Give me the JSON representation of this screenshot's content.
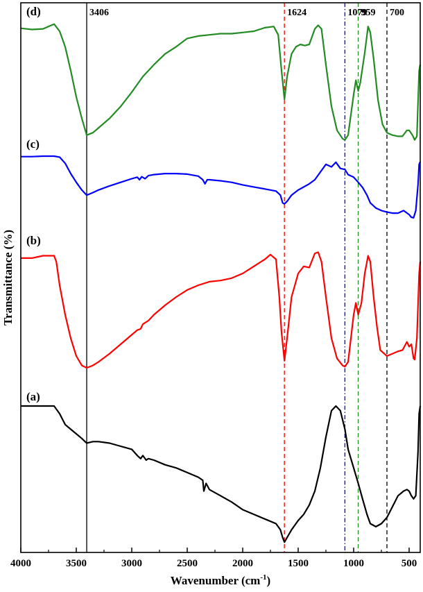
{
  "chart_data": {
    "type": "line",
    "xlabel": "Wavenumber (cm",
    "xlabel_sup": "-1",
    "xlabel_end": ")",
    "ylabel": "Transmittance (%)",
    "xlim": [
      4000,
      400
    ],
    "x_reversed": true,
    "x_ticks": [
      4000,
      3500,
      3000,
      2500,
      2000,
      1500,
      1000,
      500
    ],
    "y_ticks_shown": false,
    "grid": false,
    "stacked_offset": true,
    "series": [
      {
        "name": "(d)",
        "color": "#228b22",
        "points": [
          [
            4000,
            0.955
          ],
          [
            3900,
            0.945
          ],
          [
            3800,
            0.95
          ],
          [
            3700,
            0.99
          ],
          [
            3650,
            0.93
          ],
          [
            3600,
            0.8
          ],
          [
            3550,
            0.6
          ],
          [
            3500,
            0.38
          ],
          [
            3450,
            0.2
          ],
          [
            3406,
            0.06
          ],
          [
            3350,
            0.08
          ],
          [
            3300,
            0.12
          ],
          [
            3200,
            0.2
          ],
          [
            3100,
            0.3
          ],
          [
            3000,
            0.42
          ],
          [
            2900,
            0.55
          ],
          [
            2800,
            0.65
          ],
          [
            2700,
            0.74
          ],
          [
            2600,
            0.8
          ],
          [
            2500,
            0.87
          ],
          [
            2400,
            0.89
          ],
          [
            2300,
            0.9
          ],
          [
            2200,
            0.91
          ],
          [
            2100,
            0.91
          ],
          [
            2000,
            0.92
          ],
          [
            1900,
            0.93
          ],
          [
            1800,
            0.96
          ],
          [
            1720,
            0.97
          ],
          [
            1680,
            0.9
          ],
          [
            1650,
            0.6
          ],
          [
            1624,
            0.36
          ],
          [
            1600,
            0.55
          ],
          [
            1560,
            0.74
          ],
          [
            1520,
            0.8
          ],
          [
            1480,
            0.82
          ],
          [
            1440,
            0.81
          ],
          [
            1400,
            0.82
          ],
          [
            1350,
            0.95
          ],
          [
            1320,
            0.98
          ],
          [
            1290,
            0.95
          ],
          [
            1250,
            0.65
          ],
          [
            1200,
            0.3
          ],
          [
            1150,
            0.1
          ],
          [
            1100,
            0.03
          ],
          [
            1079,
            0.02
          ],
          [
            1050,
            0.06
          ],
          [
            1000,
            0.4
          ],
          [
            980,
            0.52
          ],
          [
            959,
            0.43
          ],
          [
            940,
            0.5
          ],
          [
            900,
            0.75
          ],
          [
            870,
            0.97
          ],
          [
            850,
            0.92
          ],
          [
            820,
            0.7
          ],
          [
            780,
            0.35
          ],
          [
            740,
            0.15
          ],
          [
            700,
            0.08
          ],
          [
            650,
            0.06
          ],
          [
            600,
            0.05
          ],
          [
            560,
            0.05
          ],
          [
            520,
            0.1
          ],
          [
            500,
            0.1
          ],
          [
            470,
            0.06
          ],
          [
            450,
            0.02
          ],
          [
            430,
            0.05
          ],
          [
            410,
            0.6
          ],
          [
            400,
            0.65
          ]
        ]
      },
      {
        "name": "(c)",
        "color": "#0000ff",
        "points": [
          [
            4000,
            0.95
          ],
          [
            3900,
            0.95
          ],
          [
            3800,
            0.96
          ],
          [
            3700,
            0.96
          ],
          [
            3650,
            0.94
          ],
          [
            3600,
            0.82
          ],
          [
            3550,
            0.62
          ],
          [
            3500,
            0.45
          ],
          [
            3450,
            0.3
          ],
          [
            3406,
            0.2
          ],
          [
            3350,
            0.25
          ],
          [
            3300,
            0.3
          ],
          [
            3200,
            0.38
          ],
          [
            3100,
            0.45
          ],
          [
            3000,
            0.52
          ],
          [
            2950,
            0.55
          ],
          [
            2930,
            0.5
          ],
          [
            2910,
            0.56
          ],
          [
            2880,
            0.52
          ],
          [
            2850,
            0.58
          ],
          [
            2800,
            0.6
          ],
          [
            2700,
            0.62
          ],
          [
            2600,
            0.62
          ],
          [
            2500,
            0.61
          ],
          [
            2400,
            0.57
          ],
          [
            2360,
            0.5
          ],
          [
            2340,
            0.42
          ],
          [
            2320,
            0.5
          ],
          [
            2300,
            0.5
          ],
          [
            2200,
            0.48
          ],
          [
            2100,
            0.45
          ],
          [
            2000,
            0.4
          ],
          [
            1900,
            0.36
          ],
          [
            1800,
            0.32
          ],
          [
            1700,
            0.28
          ],
          [
            1660,
            0.2
          ],
          [
            1640,
            0.05
          ],
          [
            1624,
            0.03
          ],
          [
            1600,
            0.08
          ],
          [
            1560,
            0.2
          ],
          [
            1500,
            0.3
          ],
          [
            1450,
            0.36
          ],
          [
            1400,
            0.42
          ],
          [
            1350,
            0.5
          ],
          [
            1300,
            0.65
          ],
          [
            1250,
            0.8
          ],
          [
            1200,
            0.75
          ],
          [
            1160,
            0.84
          ],
          [
            1120,
            0.72
          ],
          [
            1079,
            0.7
          ],
          [
            1050,
            0.6
          ],
          [
            1000,
            0.55
          ],
          [
            959,
            0.45
          ],
          [
            920,
            0.35
          ],
          [
            880,
            0.2
          ],
          [
            850,
            0.05
          ],
          [
            800,
            -0.05
          ],
          [
            750,
            -0.1
          ],
          [
            700,
            -0.13
          ],
          [
            650,
            -0.15
          ],
          [
            600,
            -0.15
          ],
          [
            550,
            -0.1
          ],
          [
            500,
            -0.18
          ],
          [
            480,
            -0.23
          ],
          [
            460,
            -0.24
          ],
          [
            440,
            -0.1
          ],
          [
            420,
            0.4
          ],
          [
            410,
            0.8
          ],
          [
            400,
            0.85
          ]
        ]
      },
      {
        "name": "(b)",
        "color": "#ff0000",
        "points": [
          [
            4000,
            0.93
          ],
          [
            3900,
            0.93
          ],
          [
            3800,
            0.95
          ],
          [
            3700,
            0.95
          ],
          [
            3680,
            0.9
          ],
          [
            3650,
            0.7
          ],
          [
            3600,
            0.45
          ],
          [
            3550,
            0.25
          ],
          [
            3500,
            0.1
          ],
          [
            3450,
            0.02
          ],
          [
            3406,
            0.0
          ],
          [
            3350,
            0.02
          ],
          [
            3300,
            0.05
          ],
          [
            3200,
            0.12
          ],
          [
            3100,
            0.2
          ],
          [
            3000,
            0.28
          ],
          [
            2950,
            0.32
          ],
          [
            2920,
            0.33
          ],
          [
            2900,
            0.37
          ],
          [
            2850,
            0.4
          ],
          [
            2800,
            0.45
          ],
          [
            2700,
            0.53
          ],
          [
            2600,
            0.6
          ],
          [
            2500,
            0.66
          ],
          [
            2400,
            0.7
          ],
          [
            2300,
            0.73
          ],
          [
            2200,
            0.74
          ],
          [
            2100,
            0.76
          ],
          [
            2000,
            0.8
          ],
          [
            1900,
            0.86
          ],
          [
            1800,
            0.92
          ],
          [
            1750,
            0.96
          ],
          [
            1700,
            0.92
          ],
          [
            1670,
            0.6
          ],
          [
            1650,
            0.3
          ],
          [
            1624,
            0.06
          ],
          [
            1600,
            0.25
          ],
          [
            1560,
            0.6
          ],
          [
            1500,
            0.8
          ],
          [
            1450,
            0.86
          ],
          [
            1400,
            0.85
          ],
          [
            1350,
            0.97
          ],
          [
            1320,
            0.98
          ],
          [
            1290,
            0.9
          ],
          [
            1250,
            0.6
          ],
          [
            1200,
            0.25
          ],
          [
            1150,
            0.08
          ],
          [
            1100,
            0.02
          ],
          [
            1079,
            0.01
          ],
          [
            1050,
            0.05
          ],
          [
            1000,
            0.45
          ],
          [
            980,
            0.55
          ],
          [
            959,
            0.45
          ],
          [
            930,
            0.55
          ],
          [
            900,
            0.8
          ],
          [
            870,
            0.95
          ],
          [
            850,
            0.9
          ],
          [
            820,
            0.6
          ],
          [
            790,
            0.35
          ],
          [
            760,
            0.15
          ],
          [
            700,
            0.1
          ],
          [
            650,
            0.12
          ],
          [
            600,
            0.14
          ],
          [
            560,
            0.15
          ],
          [
            520,
            0.22
          ],
          [
            500,
            0.18
          ],
          [
            480,
            0.2
          ],
          [
            460,
            0.08
          ],
          [
            450,
            0.07
          ],
          [
            430,
            0.25
          ],
          [
            410,
            0.8
          ],
          [
            400,
            0.9
          ]
        ]
      },
      {
        "name": "(a)",
        "color": "#000000",
        "points": [
          [
            4000,
            1.0
          ],
          [
            3900,
            1.0
          ],
          [
            3800,
            1.0
          ],
          [
            3700,
            1.0
          ],
          [
            3650,
            0.95
          ],
          [
            3600,
            0.88
          ],
          [
            3550,
            0.85
          ],
          [
            3500,
            0.82
          ],
          [
            3450,
            0.79
          ],
          [
            3406,
            0.76
          ],
          [
            3350,
            0.77
          ],
          [
            3300,
            0.77
          ],
          [
            3200,
            0.76
          ],
          [
            3100,
            0.74
          ],
          [
            3000,
            0.72
          ],
          [
            2950,
            0.68
          ],
          [
            2920,
            0.66
          ],
          [
            2900,
            0.68
          ],
          [
            2870,
            0.65
          ],
          [
            2850,
            0.66
          ],
          [
            2800,
            0.65
          ],
          [
            2700,
            0.62
          ],
          [
            2600,
            0.6
          ],
          [
            2500,
            0.57
          ],
          [
            2400,
            0.54
          ],
          [
            2360,
            0.52
          ],
          [
            2350,
            0.45
          ],
          [
            2330,
            0.5
          ],
          [
            2300,
            0.46
          ],
          [
            2200,
            0.42
          ],
          [
            2100,
            0.38
          ],
          [
            2000,
            0.33
          ],
          [
            1900,
            0.3
          ],
          [
            1800,
            0.27
          ],
          [
            1700,
            0.24
          ],
          [
            1660,
            0.2
          ],
          [
            1640,
            0.15
          ],
          [
            1624,
            0.12
          ],
          [
            1600,
            0.15
          ],
          [
            1560,
            0.2
          ],
          [
            1500,
            0.26
          ],
          [
            1450,
            0.3
          ],
          [
            1400,
            0.36
          ],
          [
            1350,
            0.45
          ],
          [
            1300,
            0.6
          ],
          [
            1250,
            0.8
          ],
          [
            1200,
            0.97
          ],
          [
            1160,
            1.0
          ],
          [
            1120,
            0.97
          ],
          [
            1079,
            0.85
          ],
          [
            1050,
            0.72
          ],
          [
            1000,
            0.6
          ],
          [
            959,
            0.5
          ],
          [
            920,
            0.4
          ],
          [
            880,
            0.3
          ],
          [
            850,
            0.24
          ],
          [
            800,
            0.22
          ],
          [
            750,
            0.24
          ],
          [
            700,
            0.28
          ],
          [
            650,
            0.35
          ],
          [
            600,
            0.42
          ],
          [
            550,
            0.45
          ],
          [
            520,
            0.46
          ],
          [
            500,
            0.45
          ],
          [
            480,
            0.42
          ],
          [
            460,
            0.4
          ],
          [
            440,
            0.42
          ],
          [
            420,
            0.7
          ],
          [
            410,
            0.95
          ],
          [
            400,
            1.0
          ]
        ]
      }
    ],
    "annotations": [
      {
        "label": "3406",
        "x": 3406,
        "color": "#000000",
        "style": "solid"
      },
      {
        "label": "1624",
        "x": 1624,
        "color": "#ff0000",
        "style": "dashed"
      },
      {
        "label": "1079",
        "x": 1079,
        "color": "#0000ff",
        "style": "dashdot"
      },
      {
        "label": "959",
        "x": 959,
        "color": "#228b22",
        "style": "dashed"
      },
      {
        "label": "700",
        "x": 700,
        "color": "#000000",
        "style": "dashed"
      }
    ]
  }
}
